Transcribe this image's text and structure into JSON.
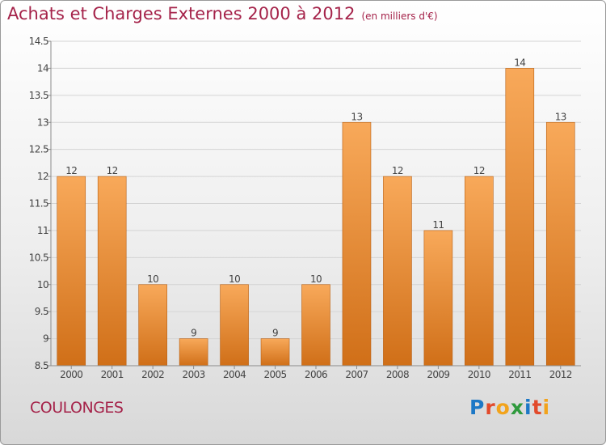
{
  "header": {
    "title": "Achats et Charges Externes 2000 à 2012",
    "unit": "(en milliers d'€)"
  },
  "footer": {
    "place": "COULONGES",
    "brand": "Proxiti"
  },
  "colors": {
    "title": "#a5234a",
    "bar_light": "#f8a95a",
    "bar_dark": "#d06f18",
    "axis": "#8c8c8c",
    "grid": "#d4d4d4"
  },
  "chart_data": {
    "type": "bar",
    "title": "Achats et Charges Externes 2000 à 2012",
    "subtitle": "(en milliers d'€)",
    "categories": [
      "2000",
      "2001",
      "2002",
      "2003",
      "2004",
      "2005",
      "2006",
      "2007",
      "2008",
      "2009",
      "2010",
      "2011",
      "2012"
    ],
    "values": [
      12,
      12,
      10,
      9,
      10,
      9,
      10,
      13,
      12,
      11,
      12,
      14,
      13
    ],
    "data_labels": [
      "12",
      "12",
      "10",
      "9",
      "10",
      "9",
      "10",
      "13",
      "12",
      "11",
      "12",
      "14",
      "13"
    ],
    "ylim": [
      8.5,
      14.5
    ],
    "yticks": [
      8.5,
      9,
      9.5,
      10,
      10.5,
      11,
      11.5,
      12,
      12.5,
      13,
      13.5,
      14,
      14.5
    ],
    "ytick_labels": [
      "8.5",
      "9",
      "9.5",
      "10",
      "10.5",
      "11",
      "11.5",
      "12",
      "12.5",
      "13",
      "13.5",
      "14",
      "14.5"
    ],
    "grid": true,
    "legend": "none"
  }
}
